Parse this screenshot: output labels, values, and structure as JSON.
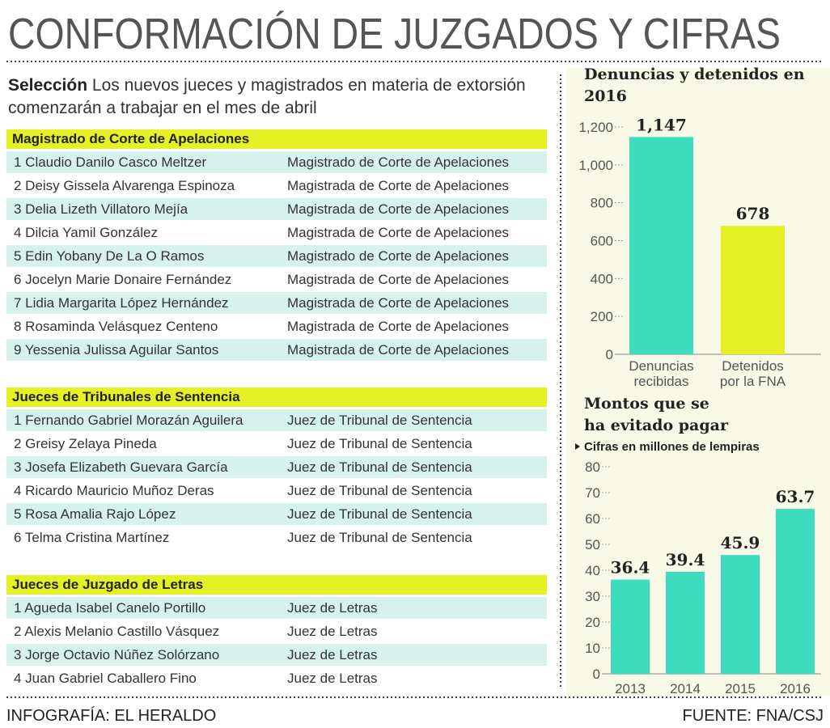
{
  "header": {
    "title": "CONFORMACIÓN DE JUZGADOS Y CIFRAS"
  },
  "intro": {
    "lead": "Selección",
    "text": "Los nuevos jueces y magistrados en materia de extorsión comenzarán a trabajar en el mes de abril"
  },
  "sections": [
    {
      "title": "Magistrado de Corte de Apelaciones",
      "rows": [
        [
          "1 Claudio Danilo Casco Meltzer",
          "Magistrado de Corte de Apelaciones"
        ],
        [
          "2 Deisy Gissela Alvarenga Espinoza",
          "Magistrada de Corte de Apelaciones"
        ],
        [
          "3 Delia Lizeth Villatoro Mejía",
          "Magistrada de Corte de Apelaciones"
        ],
        [
          "4 Dilcia Yamil González",
          "Magistrada de Corte de Apelaciones"
        ],
        [
          "5 Edin Yobany De La O Ramos",
          "Magistrado de Corte de Apelaciones"
        ],
        [
          "6 Jocelyn Marie Donaire Fernández",
          "Magistrada de Corte de Apelaciones"
        ],
        [
          "7 Lidia Margarita López Hernández",
          "Magistrada de Corte de Apelaciones"
        ],
        [
          "8 Rosaminda Velásquez Centeno",
          "Magistrada de Corte de Apelaciones"
        ],
        [
          "9 Yessenia Julissa Aguilar Santos",
          "Magistrada de Corte de Apelaciones"
        ]
      ]
    },
    {
      "title": "Jueces de Tribunales de Sentencia",
      "rows": [
        [
          "1 Fernando Gabriel Morazán Aguilera",
          "Juez de Tribunal de Sentencia"
        ],
        [
          "2 Greisy Zelaya Pineda",
          "Juez de Tribunal de Sentencia"
        ],
        [
          "3 Josefa Elizabeth Guevara García",
          "Juez de Tribunal de Sentencia"
        ],
        [
          "4 Ricardo Mauricio Muñoz Deras",
          "Juez de Tribunal de Sentencia"
        ],
        [
          "5 Rosa Amalia Rajo López",
          "Juez de Tribunal de Sentencia"
        ],
        [
          "6 Telma Cristina Martínez",
          "Juez de Tribunal de Sentencia"
        ]
      ]
    },
    {
      "title": "Jueces de Juzgado de Letras",
      "rows": [
        [
          "1 Agueda Isabel Canelo Portillo",
          "Juez de Letras"
        ],
        [
          "2 Alexis Melanio Castillo Vásquez",
          "Juez de Letras"
        ],
        [
          "3 Jorge Octavio Núñez Solórzano",
          "Juez de Letras"
        ],
        [
          "4 Juan Gabriel Caballero Fino",
          "Juez de Letras"
        ]
      ]
    }
  ],
  "chart_data": [
    {
      "type": "bar",
      "title": "Denuncias y detenidos en 2016",
      "categories": [
        "Denuncias recibidas",
        "Detenidos por la FNA"
      ],
      "values": [
        1147,
        678
      ],
      "value_labels": [
        "1,147",
        "678"
      ],
      "colors": [
        "#3ddcbf",
        "#e4f022"
      ],
      "ylim": [
        0,
        1200
      ],
      "yticks": [
        0,
        200,
        400,
        600,
        800,
        {
          "value": 1000,
          "label": "1,000"
        },
        {
          "value": 1200,
          "label": "1,200"
        }
      ]
    },
    {
      "type": "bar",
      "title": "Montos que se ha evitado pagar",
      "subtitle": "Cifras en millones de lempiras",
      "categories": [
        "2013",
        "2014",
        "2015",
        "2016"
      ],
      "values": [
        36.4,
        39.4,
        45.9,
        63.7
      ],
      "colors": [
        "#3ddcbf",
        "#3ddcbf",
        "#3ddcbf",
        "#3ddcbf"
      ],
      "ylim": [
        0,
        80
      ],
      "yticks": [
        0,
        10,
        20,
        30,
        40,
        50,
        60,
        70,
        80
      ]
    }
  ],
  "footer": {
    "credit": "INFOGRAFÍA: EL HERALDO",
    "source": "FUENTE: FNA/CSJ"
  }
}
